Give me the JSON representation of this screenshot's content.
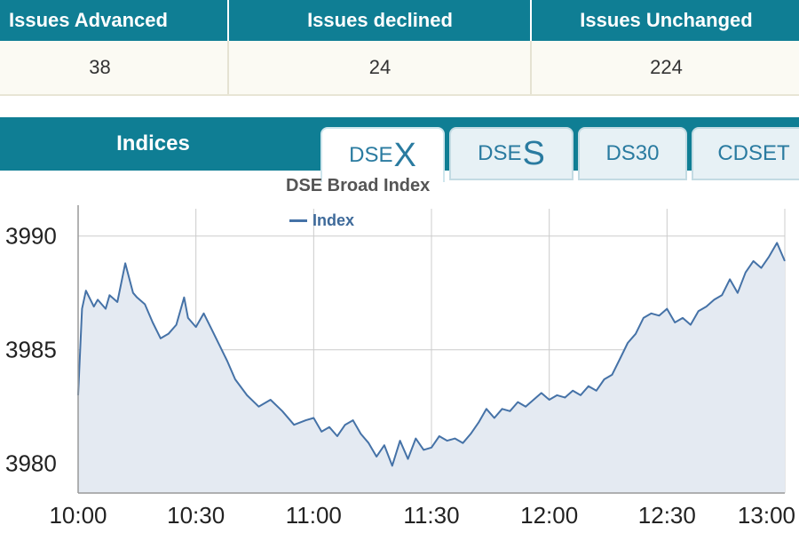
{
  "stats": {
    "headers": [
      "Issues Advanced",
      "Issues declined",
      "Issues Unchanged"
    ],
    "values": [
      "38",
      "24",
      "224"
    ]
  },
  "indices": {
    "label": "Indices",
    "tabs": [
      {
        "prefix": "DSE",
        "big": "X"
      },
      {
        "prefix": "DSE",
        "big": "S"
      },
      {
        "prefix": "DS30",
        "big": ""
      },
      {
        "prefix": "CDSET",
        "big": ""
      }
    ]
  },
  "colors": {
    "header_bg": "#0f7e94",
    "line": "#4572a7",
    "area_fill": "#e4eaf2",
    "grid": "#cccccc"
  },
  "chart_data": {
    "type": "area",
    "title": "DSE Broad Index",
    "legend": [
      "Index"
    ],
    "legend_position": "top",
    "grid": true,
    "y_ticks": [
      3980,
      3985,
      3990
    ],
    "x_ticks": [
      "10:00",
      "10:30",
      "11:00",
      "11:30",
      "12:00",
      "12:30",
      "13:00"
    ],
    "xlim": [
      "10:00",
      "13:00"
    ],
    "ylim": [
      3978.7,
      3991.2
    ],
    "series": [
      {
        "name": "Index",
        "x": [
          "10:00",
          "10:01",
          "10:02",
          "10:04",
          "10:05",
          "10:07",
          "10:08",
          "10:10",
          "10:12",
          "10:14",
          "10:15",
          "10:17",
          "10:19",
          "10:21",
          "10:23",
          "10:25",
          "10:27",
          "10:28",
          "10:30",
          "10:32",
          "10:34",
          "10:36",
          "10:38",
          "10:40",
          "10:43",
          "10:46",
          "10:49",
          "10:52",
          "10:55",
          "10:58",
          "11:00",
          "11:02",
          "11:04",
          "11:06",
          "11:08",
          "11:10",
          "11:12",
          "11:14",
          "11:16",
          "11:18",
          "11:20",
          "11:22",
          "11:24",
          "11:26",
          "11:28",
          "11:30",
          "11:32",
          "11:34",
          "11:36",
          "11:38",
          "11:40",
          "11:42",
          "11:44",
          "11:46",
          "11:48",
          "11:50",
          "11:52",
          "11:54",
          "11:56",
          "11:58",
          "12:00",
          "12:02",
          "12:04",
          "12:06",
          "12:08",
          "12:10",
          "12:12",
          "12:14",
          "12:16",
          "12:18",
          "12:20",
          "12:22",
          "12:24",
          "12:26",
          "12:28",
          "12:30",
          "12:32",
          "12:34",
          "12:36",
          "12:38",
          "12:40",
          "12:42",
          "12:44",
          "12:46",
          "12:48",
          "12:50",
          "12:52",
          "12:54",
          "12:56",
          "12:58",
          "13:00"
        ],
        "y": [
          3983.0,
          3986.8,
          3987.6,
          3986.9,
          3987.2,
          3986.8,
          3987.4,
          3987.1,
          3988.8,
          3987.5,
          3987.3,
          3987.0,
          3986.2,
          3985.5,
          3985.7,
          3986.1,
          3987.3,
          3986.4,
          3986.0,
          3986.6,
          3985.9,
          3985.2,
          3984.5,
          3983.7,
          3983.0,
          3982.5,
          3982.8,
          3982.3,
          3981.7,
          3981.9,
          3982.0,
          3981.4,
          3981.6,
          3981.2,
          3981.7,
          3981.9,
          3981.3,
          3980.9,
          3980.3,
          3980.8,
          3979.9,
          3981.0,
          3980.2,
          3981.1,
          3980.6,
          3980.7,
          3981.2,
          3981.0,
          3981.1,
          3980.9,
          3981.3,
          3981.8,
          3982.4,
          3982.0,
          3982.4,
          3982.3,
          3982.7,
          3982.5,
          3982.8,
          3983.1,
          3982.8,
          3983.0,
          3982.9,
          3983.2,
          3983.0,
          3983.4,
          3983.2,
          3983.7,
          3983.9,
          3984.6,
          3985.3,
          3985.7,
          3986.4,
          3986.6,
          3986.5,
          3986.8,
          3986.2,
          3986.4,
          3986.1,
          3986.7,
          3986.9,
          3987.2,
          3987.4,
          3988.1,
          3987.5,
          3988.4,
          3988.9,
          3988.6,
          3989.1,
          3989.7,
          3988.9
        ]
      }
    ]
  }
}
